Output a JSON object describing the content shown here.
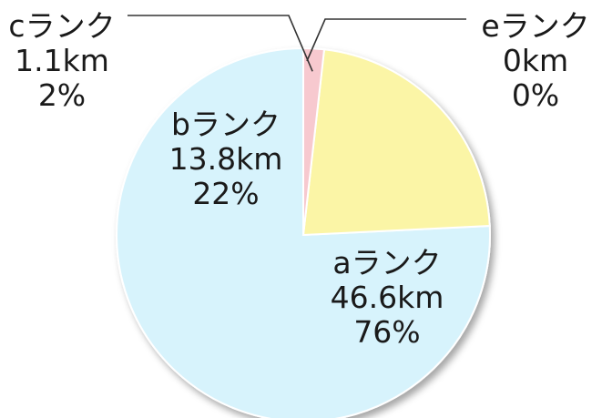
{
  "chart_data": {
    "type": "pie",
    "slices": [
      {
        "key": "a",
        "name": "aランク",
        "distance": "46.6km",
        "percent": "76%",
        "value": 46.6,
        "color": "#d7f3fc"
      },
      {
        "key": "b",
        "name": "bランク",
        "distance": "13.8km",
        "percent": "22%",
        "value": 13.8,
        "color": "#fbf5a6"
      },
      {
        "key": "c",
        "name": "cランク",
        "distance": "1.1km",
        "percent": "2%",
        "value": 1.1,
        "color": "#f7c9cf"
      },
      {
        "key": "e",
        "name": "eランク",
        "distance": "0km",
        "percent": "0%",
        "value": 0,
        "color": "#e5e5e5"
      }
    ],
    "start": "12 o'clock",
    "direction": "counterclockwise",
    "legend": "none"
  }
}
